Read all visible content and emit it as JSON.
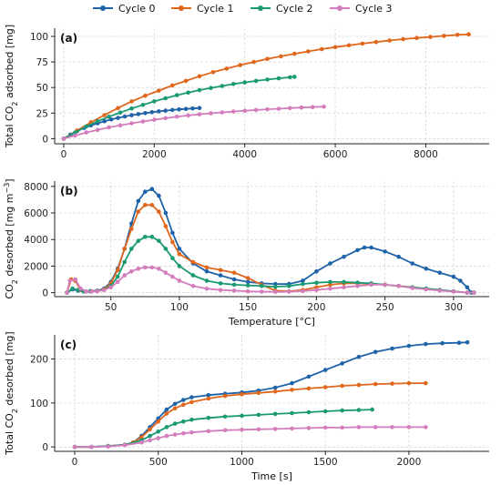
{
  "legend": [
    {
      "name": "Cycle 0",
      "color": "#1f63a8"
    },
    {
      "name": "Cycle 1",
      "color": "#e0661c"
    },
    {
      "name": "Cycle 2",
      "color": "#1a9a74"
    },
    {
      "name": "Cycle 3",
      "color": "#d37dbd"
    }
  ],
  "chart_data": [
    {
      "type": "line",
      "panel_label": "(a)",
      "xlabel": "",
      "ylabel": "Total CO2 adsorbed [mg]",
      "xlim": [
        -200,
        9400
      ],
      "ylim": [
        -5,
        108
      ],
      "xticks": [
        0,
        2000,
        4000,
        6000,
        8000
      ],
      "yticks": [
        0,
        25,
        50,
        75,
        100
      ],
      "grid": true,
      "series": [
        {
          "name": "Cycle 0",
          "color": "#1f63a8",
          "x": [
            0,
            150,
            300,
            450,
            600,
            750,
            900,
            1050,
            1200,
            1350,
            1500,
            1650,
            1800,
            1950,
            2100,
            2250,
            2400,
            2550,
            2700,
            2850,
            3000
          ],
          "y": [
            0,
            4,
            7.5,
            10.5,
            13,
            15,
            17,
            18.8,
            20.3,
            21.7,
            22.9,
            24,
            25,
            25.9,
            26.7,
            27.4,
            28,
            28.6,
            29.1,
            29.5,
            30
          ]
        },
        {
          "name": "Cycle 1",
          "color": "#e0661c",
          "x": [
            0,
            300,
            600,
            900,
            1200,
            1500,
            1800,
            2100,
            2400,
            2700,
            3000,
            3300,
            3600,
            3900,
            4200,
            4500,
            4800,
            5100,
            5400,
            5700,
            6000,
            6300,
            6600,
            6900,
            7200,
            7500,
            7800,
            8100,
            8400,
            8700,
            8950
          ],
          "y": [
            0,
            8,
            16,
            23,
            30,
            36.5,
            42,
            47,
            52,
            56.5,
            61,
            65,
            68.5,
            72,
            75,
            78,
            80.5,
            83,
            85.3,
            87.5,
            89.5,
            91.3,
            93,
            94.5,
            96,
            97.3,
            98.5,
            99.5,
            100.5,
            101.5,
            102
          ]
        },
        {
          "name": "Cycle 2",
          "color": "#1a9a74",
          "x": [
            0,
            250,
            500,
            750,
            1000,
            1250,
            1500,
            1750,
            2000,
            2250,
            2500,
            2750,
            3000,
            3250,
            3500,
            3750,
            4000,
            4250,
            4500,
            4750,
            5000,
            5100
          ],
          "y": [
            0,
            6,
            12,
            17,
            21.5,
            25.5,
            29.5,
            33,
            36.5,
            39.5,
            42.5,
            45,
            47.5,
            49.5,
            51.5,
            53.5,
            55,
            56.5,
            57.8,
            59,
            60,
            60.5
          ]
        },
        {
          "name": "Cycle 3",
          "color": "#d37dbd",
          "x": [
            0,
            250,
            500,
            750,
            1000,
            1250,
            1500,
            1750,
            2000,
            2250,
            2500,
            2750,
            3000,
            3250,
            3500,
            3750,
            4000,
            4250,
            4500,
            4750,
            5000,
            5250,
            5500,
            5750
          ],
          "y": [
            0,
            3,
            6,
            8.5,
            11,
            13,
            15,
            16.8,
            18.5,
            20,
            21.5,
            22.7,
            23.8,
            24.8,
            25.7,
            26.5,
            27.3,
            28,
            28.7,
            29.3,
            29.9,
            30.4,
            30.9,
            31.3
          ]
        }
      ]
    },
    {
      "type": "line",
      "panel_label": "(b)",
      "xlabel": "Temperature [°C]",
      "ylabel": "CO2 desorbed [mg m-3]",
      "xlim": [
        9,
        326
      ],
      "ylim": [
        -300,
        8400
      ],
      "xticks": [
        50,
        100,
        150,
        200,
        250,
        300
      ],
      "yticks": [
        0,
        2000,
        4000,
        6000,
        8000
      ],
      "grid": true,
      "series": [
        {
          "name": "Cycle 0",
          "color": "#1f63a8",
          "x": [
            18,
            22,
            26,
            30,
            35,
            40,
            45,
            50,
            55,
            60,
            65,
            70,
            75,
            80,
            85,
            90,
            95,
            100,
            110,
            120,
            130,
            140,
            150,
            160,
            170,
            180,
            190,
            200,
            210,
            220,
            230,
            235,
            240,
            250,
            260,
            270,
            280,
            290,
            300,
            305,
            310,
            313
          ],
          "y": [
            0,
            250,
            150,
            100,
            120,
            150,
            300,
            800,
            1800,
            3300,
            5200,
            6900,
            7600,
            7800,
            7300,
            6000,
            4500,
            3300,
            2200,
            1600,
            1300,
            1000,
            800,
            700,
            650,
            650,
            900,
            1600,
            2200,
            2700,
            3200,
            3400,
            3400,
            3100,
            2700,
            2200,
            1800,
            1500,
            1200,
            900,
            400,
            0
          ]
        },
        {
          "name": "Cycle 1",
          "color": "#e0661c",
          "x": [
            18,
            21,
            24,
            28,
            32,
            36,
            40,
            45,
            50,
            55,
            60,
            65,
            70,
            75,
            80,
            85,
            90,
            95,
            100,
            110,
            120,
            130,
            140,
            150,
            160,
            170,
            180,
            190,
            200,
            210,
            220,
            230,
            240,
            250,
            260,
            270,
            280,
            290,
            300,
            310,
            315
          ],
          "y": [
            0,
            1000,
            900,
            200,
            80,
            100,
            130,
            250,
            700,
            1700,
            3300,
            4800,
            6100,
            6600,
            6600,
            6100,
            5000,
            3800,
            2900,
            2300,
            1900,
            1700,
            1500,
            1100,
            600,
            150,
            100,
            200,
            400,
            600,
            700,
            700,
            650,
            600,
            500,
            400,
            300,
            200,
            100,
            0,
            0
          ]
        },
        {
          "name": "Cycle 2",
          "color": "#1a9a74",
          "x": [
            18,
            22,
            26,
            30,
            35,
            40,
            45,
            50,
            55,
            60,
            65,
            70,
            75,
            80,
            85,
            90,
            95,
            100,
            110,
            120,
            130,
            140,
            150,
            160,
            170,
            180,
            190,
            200,
            210,
            220,
            230,
            240,
            250,
            260,
            270,
            280,
            290,
            300,
            310,
            315
          ],
          "y": [
            0,
            300,
            200,
            100,
            100,
            120,
            200,
            500,
            1200,
            2300,
            3300,
            3900,
            4200,
            4200,
            3900,
            3300,
            2600,
            2000,
            1300,
            900,
            700,
            600,
            550,
            500,
            450,
            500,
            650,
            750,
            800,
            800,
            750,
            700,
            600,
            500,
            400,
            300,
            200,
            100,
            0,
            0
          ]
        },
        {
          "name": "Cycle 3",
          "color": "#d37dbd",
          "x": [
            18,
            20,
            24,
            28,
            32,
            36,
            40,
            45,
            50,
            55,
            60,
            65,
            70,
            75,
            80,
            85,
            90,
            95,
            100,
            110,
            120,
            130,
            140,
            150,
            160,
            170,
            180,
            190,
            200,
            210,
            220,
            230,
            240,
            250,
            260,
            270,
            280,
            290,
            300,
            310,
            315
          ],
          "y": [
            0,
            900,
            1000,
            300,
            100,
            80,
            100,
            200,
            400,
            800,
            1300,
            1600,
            1800,
            1900,
            1900,
            1800,
            1500,
            1200,
            900,
            500,
            300,
            200,
            150,
            100,
            80,
            60,
            80,
            120,
            200,
            300,
            400,
            500,
            600,
            600,
            500,
            350,
            250,
            150,
            80,
            0,
            0
          ]
        }
      ]
    },
    {
      "type": "line",
      "panel_label": "(c)",
      "xlabel": "Time [s]",
      "ylabel": "Total CO2 desorbed [mg]",
      "xlim": [
        -120,
        2480
      ],
      "ylim": [
        -10,
        255
      ],
      "xticks": [
        0,
        500,
        1000,
        1500,
        2000
      ],
      "yticks": [
        0,
        100,
        200
      ],
      "grid": true,
      "series": [
        {
          "name": "Cycle 0",
          "color": "#1f63a8",
          "x": [
            0,
            100,
            200,
            300,
            350,
            400,
            450,
            500,
            550,
            600,
            650,
            700,
            800,
            900,
            1000,
            1100,
            1200,
            1300,
            1400,
            1500,
            1600,
            1700,
            1800,
            1900,
            2000,
            2100,
            2200,
            2300,
            2350
          ],
          "y": [
            0,
            0,
            2,
            5,
            10,
            25,
            45,
            65,
            85,
            98,
            107,
            113,
            118,
            121,
            124,
            128,
            135,
            145,
            160,
            175,
            190,
            205,
            216,
            224,
            230,
            234,
            236,
            237,
            238
          ]
        },
        {
          "name": "Cycle 1",
          "color": "#e0661c",
          "x": [
            0,
            100,
            200,
            300,
            350,
            400,
            450,
            500,
            550,
            600,
            650,
            700,
            800,
            900,
            1000,
            1100,
            1200,
            1300,
            1400,
            1500,
            1600,
            1700,
            1800,
            1900,
            2000,
            2100
          ],
          "y": [
            0,
            0,
            2,
            5,
            10,
            22,
            40,
            58,
            76,
            88,
            96,
            102,
            110,
            116,
            120,
            123,
            126,
            130,
            133,
            136,
            139,
            141,
            143,
            144,
            145,
            145
          ]
        },
        {
          "name": "Cycle 2",
          "color": "#1a9a74",
          "x": [
            0,
            100,
            200,
            300,
            400,
            450,
            500,
            550,
            600,
            650,
            700,
            800,
            900,
            1000,
            1100,
            1200,
            1300,
            1400,
            1500,
            1600,
            1700,
            1780
          ],
          "y": [
            0,
            0,
            2,
            5,
            15,
            25,
            35,
            45,
            53,
            58,
            62,
            66,
            69,
            71,
            73,
            75,
            77,
            79,
            81,
            83,
            84,
            85
          ]
        },
        {
          "name": "Cycle 3",
          "color": "#d37dbd",
          "x": [
            0,
            100,
            200,
            300,
            400,
            450,
            500,
            550,
            600,
            650,
            700,
            800,
            900,
            1000,
            1100,
            1200,
            1300,
            1400,
            1500,
            1600,
            1700,
            1800,
            1900,
            2000,
            2100
          ],
          "y": [
            0,
            0,
            1,
            4,
            10,
            15,
            20,
            25,
            28,
            31,
            33,
            36,
            38,
            39,
            40,
            41,
            42,
            43,
            44,
            44,
            45,
            45,
            45,
            45,
            45
          ]
        }
      ]
    }
  ]
}
